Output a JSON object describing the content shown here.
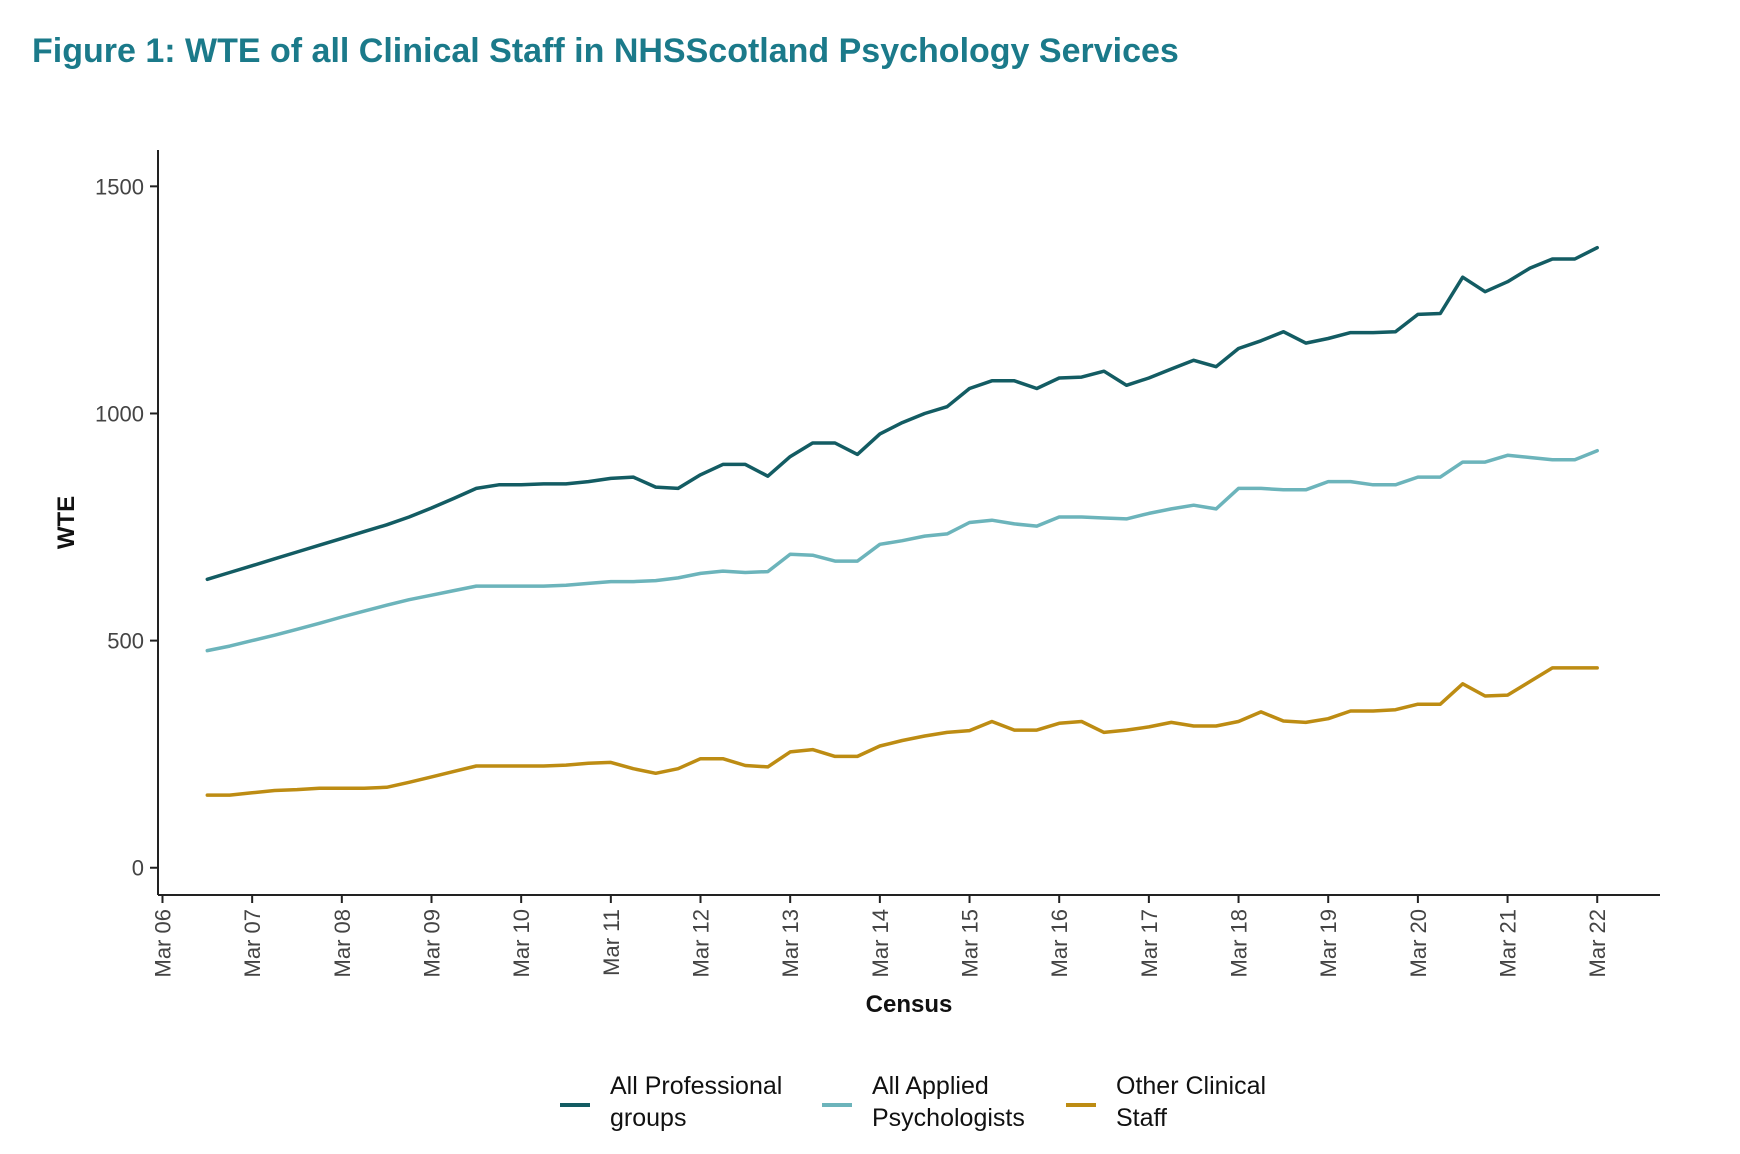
{
  "title": "Figure 1: WTE of all Clinical Staff in NHSScotland Psychology Services",
  "chart_data": {
    "type": "line",
    "title": "Figure 1: WTE of all Clinical Staff in NHSScotland Psychology Services",
    "xlabel": "Census",
    "ylabel": "WTE",
    "ylim": [
      -60,
      1580
    ],
    "xlim": [
      2005.95,
      2022.7
    ],
    "grid": false,
    "legend_position": "bottom",
    "y_ticks": [
      0,
      500,
      1000,
      1500
    ],
    "y_tick_labels": [
      "0",
      "500",
      "1000",
      "1500"
    ],
    "x_ticks": [
      2006,
      2007,
      2008,
      2009,
      2010,
      2011,
      2012,
      2013,
      2014,
      2015,
      2016,
      2017,
      2018,
      2019,
      2020,
      2021,
      2022
    ],
    "x_tick_labels": [
      "Mar 06",
      "Mar 07",
      "Mar 08",
      "Mar 09",
      "Mar 10",
      "Mar 11",
      "Mar 12",
      "Mar 13",
      "Mar 14",
      "Mar 15",
      "Mar 16",
      "Mar 17",
      "Mar 18",
      "Mar 19",
      "Mar 20",
      "Mar 21",
      "Mar 22"
    ],
    "x": [
      2006.5,
      2006.75,
      2007,
      2007.25,
      2007.5,
      2007.75,
      2008,
      2008.25,
      2008.5,
      2008.75,
      2009,
      2009.25,
      2009.5,
      2009.75,
      2010,
      2010.25,
      2010.5,
      2010.75,
      2011,
      2011.25,
      2011.5,
      2011.75,
      2012,
      2012.25,
      2012.5,
      2012.75,
      2013,
      2013.25,
      2013.5,
      2013.75,
      2014,
      2014.25,
      2014.5,
      2014.75,
      2015,
      2015.25,
      2015.5,
      2015.75,
      2016,
      2016.25,
      2016.5,
      2016.75,
      2017,
      2017.25,
      2017.5,
      2017.75,
      2018,
      2018.25,
      2018.5,
      2018.75,
      2019,
      2019.25,
      2019.5,
      2019.75,
      2020,
      2020.25,
      2020.5,
      2020.75,
      2021,
      2021.25,
      2021.5,
      2021.75,
      2022
    ],
    "series": [
      {
        "name": "All Professional groups",
        "color": "#135c63",
        "values": [
          635,
          650,
          665,
          680,
          695,
          710,
          725,
          740,
          755,
          772,
          792,
          813,
          835,
          843,
          843,
          845,
          845,
          850,
          857,
          860,
          838,
          835,
          865,
          888,
          888,
          862,
          905,
          935,
          935,
          910,
          955,
          980,
          1000,
          1015,
          1055,
          1072,
          1072,
          1055,
          1078,
          1080,
          1093,
          1062,
          1078,
          1098,
          1117,
          1103,
          1143,
          1160,
          1180,
          1155,
          1165,
          1178,
          1178,
          1180,
          1218,
          1220,
          1300,
          1268,
          1290,
          1320,
          1340,
          1340,
          1365
        ]
      },
      {
        "name": "All Applied Psychologists",
        "color": "#6cb4bb",
        "values": [
          478,
          488,
          500,
          512,
          525,
          538,
          552,
          565,
          578,
          590,
          600,
          610,
          620,
          620,
          620,
          620,
          622,
          626,
          630,
          630,
          632,
          638,
          648,
          653,
          650,
          652,
          690,
          688,
          675,
          675,
          712,
          720,
          730,
          735,
          760,
          765,
          757,
          752,
          772,
          772,
          770,
          768,
          780,
          790,
          798,
          790,
          835,
          835,
          832,
          832,
          850,
          850,
          843,
          843,
          860,
          860,
          893,
          893,
          908,
          903,
          898,
          898,
          918
        ]
      },
      {
        "name": "Other Clinical Staff",
        "color": "#bd8c13",
        "values": [
          160,
          160,
          165,
          170,
          172,
          175,
          175,
          175,
          177,
          188,
          200,
          212,
          224,
          224,
          224,
          224,
          226,
          230,
          232,
          218,
          208,
          218,
          240,
          240,
          225,
          222,
          255,
          260,
          245,
          245,
          268,
          280,
          290,
          298,
          302,
          322,
          303,
          303,
          318,
          322,
          298,
          303,
          310,
          320,
          312,
          312,
          322,
          343,
          323,
          320,
          328,
          345,
          345,
          348,
          360,
          360,
          405,
          378,
          380,
          410,
          440,
          440,
          440
        ]
      }
    ]
  }
}
